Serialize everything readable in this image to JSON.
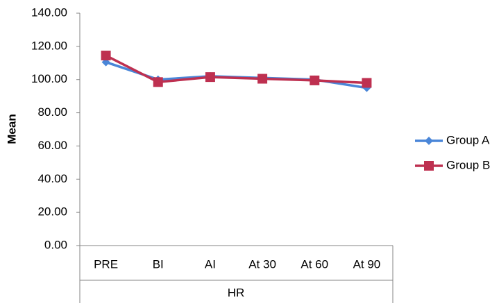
{
  "chart_data": {
    "type": "line",
    "ylabel": "Mean",
    "xlabel": "HR",
    "categories": [
      "PRE",
      "BI",
      "AI",
      "At 30",
      "At 60",
      "At 90"
    ],
    "series": [
      {
        "name": "Group A",
        "color": "#4a86d8",
        "marker": "diamond",
        "values": [
          110.5,
          100,
          102,
          101,
          100,
          95
        ]
      },
      {
        "name": "Group B",
        "color": "#be3050",
        "marker": "square",
        "values": [
          114.5,
          98.5,
          101.5,
          100.5,
          99.5,
          98
        ]
      }
    ],
    "ylim": [
      0,
      140
    ],
    "yticks": [
      {
        "value": 0,
        "label": "0.00"
      },
      {
        "value": 20,
        "label": "20.00"
      },
      {
        "value": 40,
        "label": "40.00"
      },
      {
        "value": 60,
        "label": "60.00"
      },
      {
        "value": 80,
        "label": "80.00"
      },
      {
        "value": 100,
        "label": "100.00"
      },
      {
        "value": 120,
        "label": "120.00"
      },
      {
        "value": 140,
        "label": "140.00"
      }
    ],
    "grid": false,
    "legend": "right"
  }
}
